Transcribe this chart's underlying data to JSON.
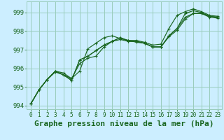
{
  "background_color": "#cceeff",
  "grid_color": "#99ccbb",
  "line_color": "#1a6620",
  "xlabel": "Graphe pression niveau de la mer (hPa)",
  "xlabel_fontsize": 8,
  "xlim": [
    -0.5,
    23.5
  ],
  "ylim": [
    993.8,
    999.6
  ],
  "yticks": [
    994,
    995,
    996,
    997,
    998,
    999
  ],
  "xticks": [
    0,
    1,
    2,
    3,
    4,
    5,
    6,
    7,
    8,
    9,
    10,
    11,
    12,
    13,
    14,
    15,
    16,
    17,
    18,
    19,
    20,
    21,
    22,
    23
  ],
  "series": [
    [
      994.1,
      994.85,
      995.4,
      995.85,
      995.75,
      995.45,
      995.85,
      997.05,
      997.35,
      997.65,
      997.75,
      997.6,
      997.5,
      997.5,
      997.4,
      997.25,
      997.3,
      998.15,
      998.85,
      999.05,
      999.2,
      999.05,
      998.85,
      998.8
    ],
    [
      994.1,
      994.85,
      995.4,
      995.85,
      995.65,
      995.45,
      996.25,
      996.55,
      996.65,
      997.15,
      997.45,
      997.65,
      997.45,
      997.45,
      997.35,
      997.15,
      997.15,
      997.75,
      998.15,
      998.95,
      999.1,
      999.0,
      998.8,
      998.75
    ],
    [
      994.1,
      994.85,
      995.4,
      995.85,
      995.65,
      995.35,
      996.45,
      996.65,
      996.95,
      997.25,
      997.45,
      997.55,
      997.45,
      997.45,
      997.35,
      997.15,
      997.15,
      997.75,
      998.15,
      998.75,
      998.95,
      998.95,
      998.8,
      998.75
    ],
    [
      994.1,
      994.85,
      995.4,
      995.8,
      995.65,
      995.35,
      996.45,
      996.65,
      996.95,
      997.25,
      997.45,
      997.65,
      997.5,
      997.4,
      997.35,
      997.15,
      997.15,
      997.7,
      998.05,
      998.65,
      998.95,
      998.95,
      998.75,
      998.7
    ]
  ]
}
